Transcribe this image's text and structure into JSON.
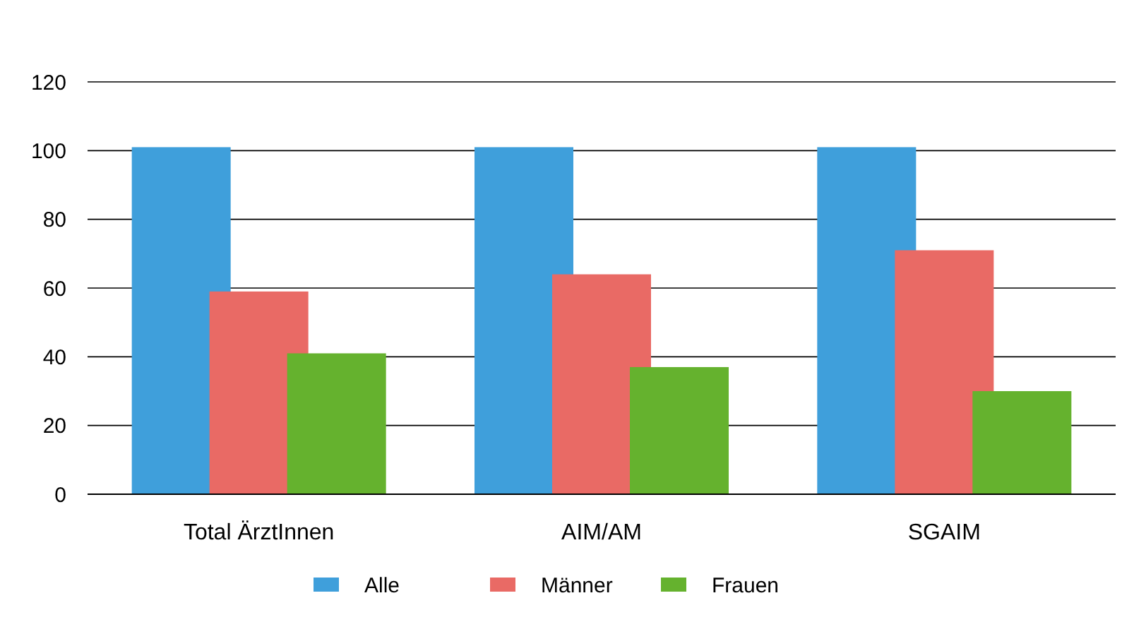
{
  "chart_data": {
    "type": "bar",
    "categories": [
      "Total ÄrztInnen",
      "AIM/AM",
      "SGAIM"
    ],
    "series": [
      {
        "name": "Alle",
        "color": "#3f9fdb",
        "values": [
          101,
          101,
          101
        ]
      },
      {
        "name": "Männer",
        "color": "#e96a65",
        "values": [
          59,
          64,
          71
        ]
      },
      {
        "name": "Frauen",
        "color": "#65b22e",
        "values": [
          41,
          37,
          30
        ]
      }
    ],
    "ylim": [
      0,
      120
    ],
    "yticks": [
      0,
      20,
      40,
      60,
      80,
      100,
      120
    ],
    "grid": "y",
    "legend": "bottom"
  }
}
